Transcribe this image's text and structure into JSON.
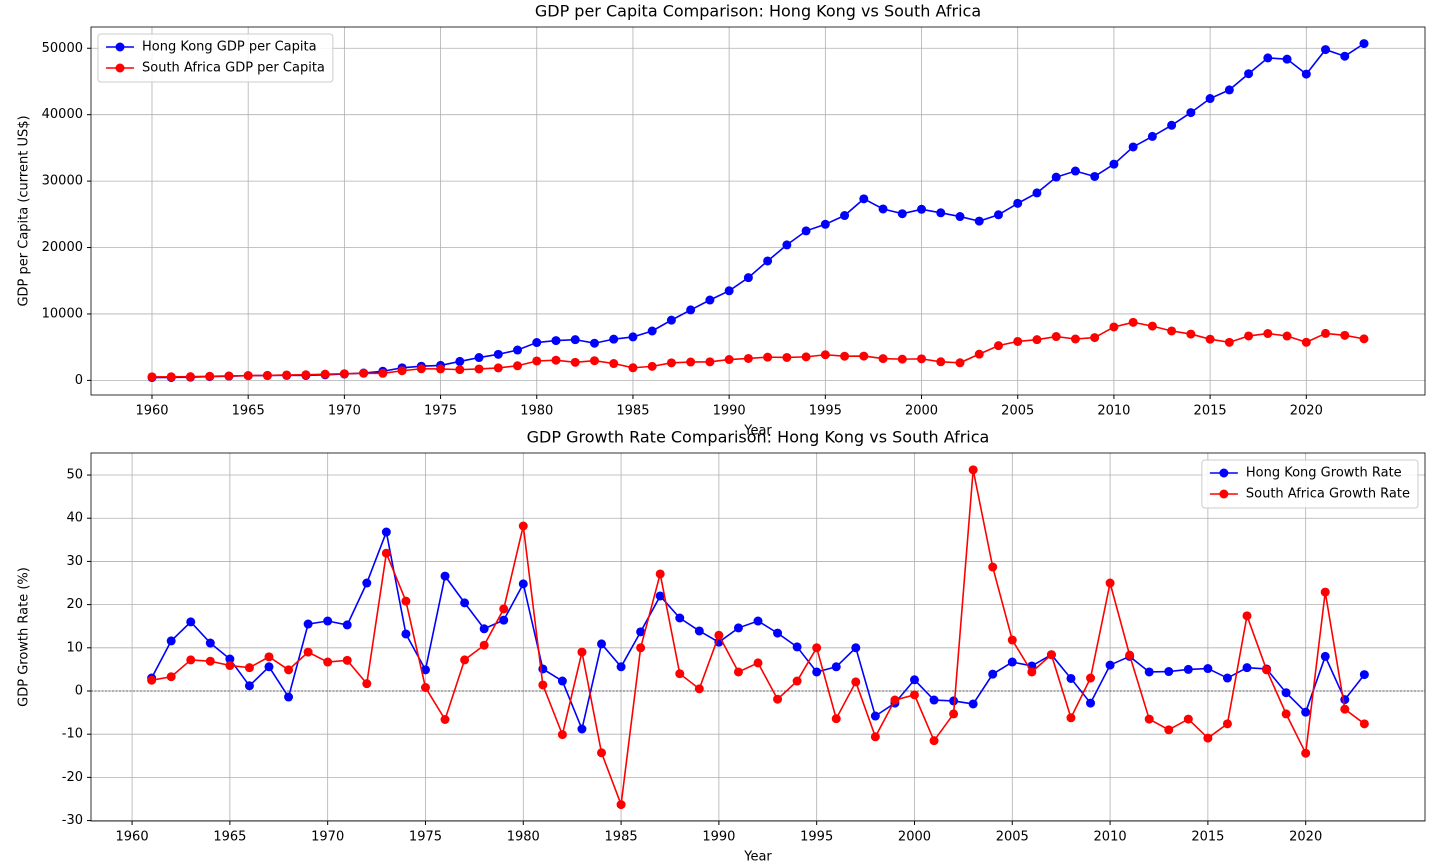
{
  "chart_data": [
    {
      "type": "line",
      "title": "GDP per Capita Comparison: Hong Kong vs South Africa",
      "x_label": "Year",
      "y_label": "GDP per Capita (current US$)",
      "x": [
        1960,
        1961,
        1962,
        1963,
        1964,
        1965,
        1966,
        1967,
        1968,
        1969,
        1970,
        1971,
        1972,
        1973,
        1974,
        1975,
        1976,
        1977,
        1978,
        1979,
        1980,
        1981,
        1982,
        1983,
        1984,
        1985,
        1986,
        1987,
        1988,
        1989,
        1990,
        1991,
        1992,
        1993,
        1994,
        1995,
        1996,
        1997,
        1998,
        1999,
        2000,
        2001,
        2002,
        2003,
        2004,
        2005,
        2006,
        2007,
        2008,
        2009,
        2010,
        2011,
        2012,
        2013,
        2014,
        2015,
        2016,
        2017,
        2018,
        2019,
        2020,
        2021,
        2022,
        2023
      ],
      "series": [
        {
          "name": "Hong Kong GDP per Capita",
          "color": "#0000ff",
          "values": [
            429,
            443,
            485,
            568,
            639,
            717,
            734,
            753,
            743,
            836,
            960,
            1106,
            1375,
            1890,
            2136,
            2252,
            2856,
            3440,
            3924,
            4570,
            5700,
            5990,
            6134,
            5595,
            6208,
            6543,
            7435,
            9071,
            10610,
            12098,
            13486,
            15466,
            17976,
            20396,
            22503,
            23497,
            24818,
            27330,
            25809,
            25092,
            25757,
            25230,
            24666,
            23977,
            24928,
            26650,
            28224,
            30594,
            31516,
            30697,
            32550,
            35142,
            36731,
            38404,
            40315,
            42432,
            43731,
            46166,
            48543,
            48356,
            46109,
            49800,
            48800,
            50700
          ]
        },
        {
          "name": "South Africa GDP per Capita",
          "color": "#ff0000",
          "values": [
            530,
            543,
            565,
            614,
            665,
            709,
            750,
            813,
            845,
            938,
            1000,
            1070,
            1070,
            1450,
            1750,
            1730,
            1620,
            1720,
            1880,
            2200,
            2920,
            3040,
            2720,
            2960,
            2540,
            1900,
            2110,
            2640,
            2760,
            2790,
            3140,
            3300,
            3500,
            3450,
            3540,
            3860,
            3640,
            3660,
            3280,
            3200,
            3240,
            2800,
            2650,
            3950,
            5230,
            5860,
            6130,
            6600,
            6230,
            6440,
            8040,
            8740,
            8170,
            7440,
            6970,
            6200,
            5730,
            6690,
            7050,
            6680,
            5740,
            7070,
            6780,
            6250
          ]
        }
      ],
      "xlim": [
        1956.83,
        2026.17
      ],
      "xticks": [
        1960,
        1965,
        1970,
        1975,
        1980,
        1985,
        1990,
        1995,
        2000,
        2005,
        2010,
        2015,
        2020
      ],
      "ylim": [
        -2200,
        53200
      ],
      "yticks": [
        0,
        10000,
        20000,
        30000,
        40000,
        50000
      ],
      "grid": true,
      "legend": "upper left"
    },
    {
      "type": "line",
      "title": "GDP Growth Rate Comparison: Hong Kong vs South Africa",
      "x_label": "Year",
      "y_label": "GDP Growth Rate (%)",
      "x": [
        1961,
        1962,
        1963,
        1964,
        1965,
        1966,
        1967,
        1968,
        1969,
        1970,
        1971,
        1972,
        1973,
        1974,
        1975,
        1976,
        1977,
        1978,
        1979,
        1980,
        1981,
        1982,
        1983,
        1984,
        1985,
        1986,
        1987,
        1988,
        1989,
        1990,
        1991,
        1992,
        1993,
        1994,
        1995,
        1996,
        1997,
        1998,
        1999,
        2000,
        2001,
        2002,
        2003,
        2004,
        2005,
        2006,
        2007,
        2008,
        2009,
        2010,
        2011,
        2012,
        2013,
        2014,
        2015,
        2016,
        2017,
        2018,
        2019,
        2020,
        2021,
        2022,
        2023
      ],
      "series": [
        {
          "name": "Hong Kong Growth Rate",
          "color": "#0000ff",
          "values": [
            3.0,
            11.6,
            16.0,
            11.1,
            7.4,
            1.2,
            5.6,
            -1.4,
            15.5,
            16.2,
            15.3,
            25.0,
            36.8,
            13.2,
            4.9,
            26.6,
            20.4,
            14.4,
            16.4,
            24.8,
            5.1,
            2.3,
            -8.8,
            10.9,
            5.6,
            13.7,
            22.0,
            16.9,
            13.9,
            11.3,
            14.6,
            16.2,
            13.4,
            10.2,
            4.4,
            5.6,
            10.0,
            -5.8,
            -2.8,
            2.6,
            -2.1,
            -2.3,
            -3.0,
            3.9,
            6.7,
            5.8,
            8.4,
            2.9,
            -2.8,
            6.0,
            8.0,
            4.4,
            4.5,
            5.0,
            5.2,
            3.0,
            5.4,
            5.1,
            -0.4,
            -4.9,
            8.0,
            -2.0,
            3.8
          ]
        },
        {
          "name": "South Africa Growth Rate",
          "color": "#ff0000",
          "values": [
            2.5,
            3.3,
            7.2,
            6.9,
            5.9,
            5.4,
            7.9,
            4.9,
            9.0,
            6.7,
            7.1,
            1.7,
            31.9,
            20.8,
            0.8,
            -6.6,
            7.2,
            10.6,
            19.0,
            38.2,
            1.4,
            -10.1,
            9.0,
            -14.3,
            -26.3,
            10.0,
            27.1,
            4.0,
            0.5,
            12.9,
            4.4,
            6.5,
            -1.9,
            2.3,
            10.0,
            -6.4,
            2.1,
            -10.6,
            -2.1,
            -0.9,
            -11.5,
            -5.3,
            51.2,
            28.7,
            11.8,
            4.4,
            8.4,
            -6.2,
            3.0,
            25.0,
            8.3,
            -6.5,
            -9.0,
            -6.5,
            -10.9,
            -7.6,
            17.4,
            4.9,
            -5.3,
            -14.4,
            22.9,
            -4.2,
            -7.6
          ]
        }
      ],
      "xlim": [
        1957.9,
        2026.1
      ],
      "xticks": [
        1960,
        1965,
        1970,
        1975,
        1980,
        1985,
        1990,
        1995,
        2000,
        2005,
        2010,
        2015,
        2020
      ],
      "ylim": [
        -30.1,
        55.1
      ],
      "yticks": [
        -30,
        -20,
        -10,
        0,
        10,
        20,
        30,
        40,
        50
      ],
      "reference_line": 0,
      "grid": true,
      "legend": "upper right"
    }
  ]
}
